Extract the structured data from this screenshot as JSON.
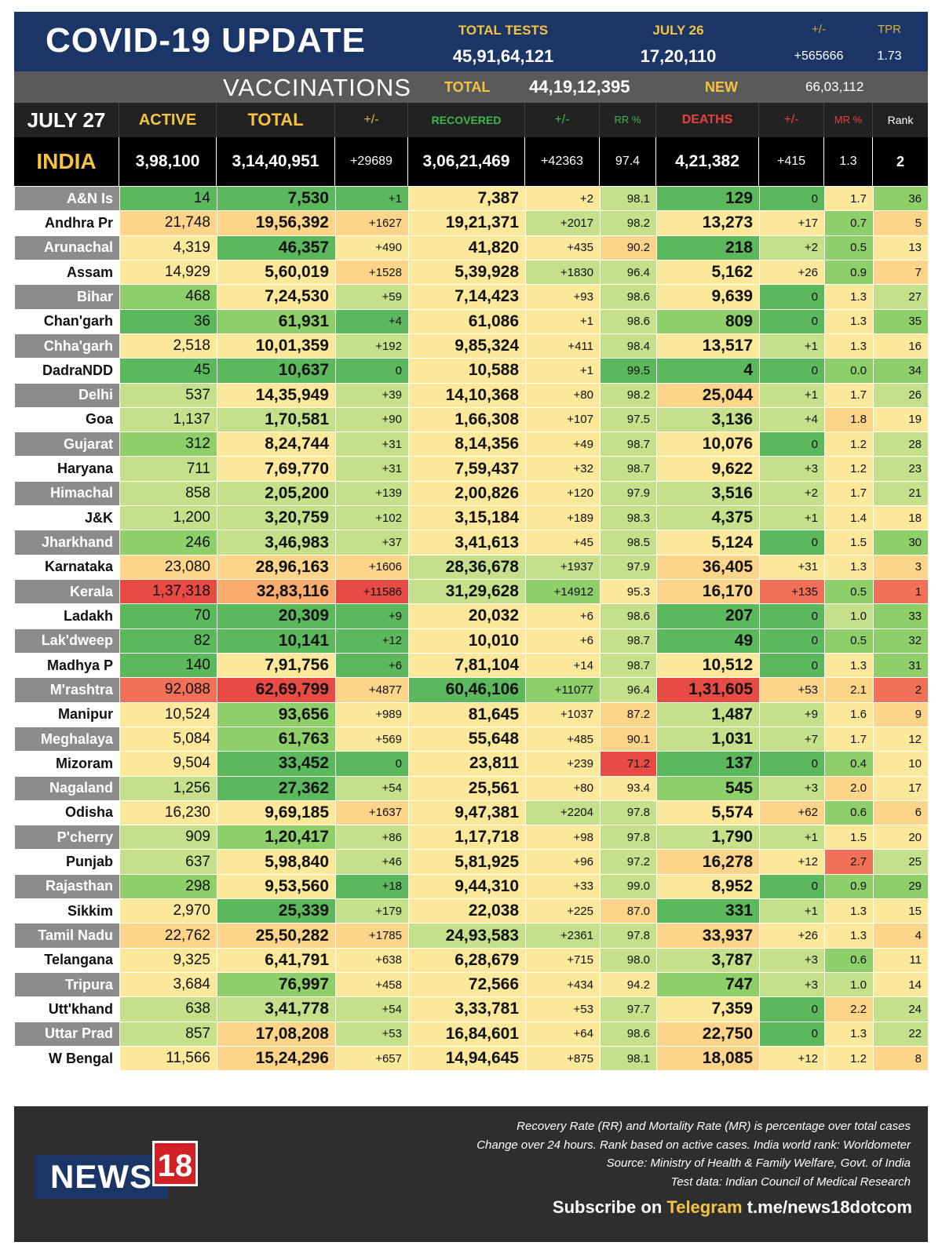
{
  "header": {
    "title": "COVID-19 UPDATE",
    "total_tests_label": "TOTAL TESTS",
    "total_tests_value": "45,91,64,121",
    "date_label": "JULY 26",
    "date_value": "17,20,110",
    "change_label": "+/-",
    "change_value": "+565666",
    "tpr_label": "TPR",
    "tpr_value": "1.73"
  },
  "vaccinations": {
    "title": "VACCINATIONS",
    "total_label": "TOTAL",
    "total_value": "44,19,12,395",
    "new_label": "NEW",
    "new_value": "66,03,112"
  },
  "columns": {
    "date": "JULY 27",
    "active": "ACTIVE",
    "total": "TOTAL",
    "total_change": "+/-",
    "recovered": "RECOVERED",
    "recovered_change": "+/-",
    "rr": "RR %",
    "deaths": "DEATHS",
    "deaths_change": "+/-",
    "mr": "MR %",
    "rank": "Rank"
  },
  "india": {
    "name": "INDIA",
    "active": "3,98,100",
    "total": "3,14,40,951",
    "total_change": "+29689",
    "recovered": "3,06,21,469",
    "recovered_change": "+42363",
    "rr": "97.4",
    "deaths": "4,21,382",
    "deaths_change": "+415",
    "mr": "1.3",
    "rank": "2"
  },
  "states": [
    [
      "A&N Is",
      "14",
      "7,530",
      "+1",
      "7,387",
      "+2",
      "98.1",
      "129",
      "0",
      "1.7",
      "36"
    ],
    [
      "Andhra Pr",
      "21,748",
      "19,56,392",
      "+1627",
      "19,21,371",
      "+2017",
      "98.2",
      "13,273",
      "+17",
      "0.7",
      "5"
    ],
    [
      "Arunachal",
      "4,319",
      "46,357",
      "+490",
      "41,820",
      "+435",
      "90.2",
      "218",
      "+2",
      "0.5",
      "13"
    ],
    [
      "Assam",
      "14,929",
      "5,60,019",
      "+1528",
      "5,39,928",
      "+1830",
      "96.4",
      "5,162",
      "+26",
      "0.9",
      "7"
    ],
    [
      "Bihar",
      "468",
      "7,24,530",
      "+59",
      "7,14,423",
      "+93",
      "98.6",
      "9,639",
      "0",
      "1.3",
      "27"
    ],
    [
      "Chan'garh",
      "36",
      "61,931",
      "+4",
      "61,086",
      "+1",
      "98.6",
      "809",
      "0",
      "1.3",
      "35"
    ],
    [
      "Chha'garh",
      "2,518",
      "10,01,359",
      "+192",
      "9,85,324",
      "+411",
      "98.4",
      "13,517",
      "+1",
      "1.3",
      "16"
    ],
    [
      "DadraNDD",
      "45",
      "10,637",
      "0",
      "10,588",
      "+1",
      "99.5",
      "4",
      "0",
      "0.0",
      "34"
    ],
    [
      "Delhi",
      "537",
      "14,35,949",
      "+39",
      "14,10,368",
      "+80",
      "98.2",
      "25,044",
      "+1",
      "1.7",
      "26"
    ],
    [
      "Goa",
      "1,137",
      "1,70,581",
      "+90",
      "1,66,308",
      "+107",
      "97.5",
      "3,136",
      "+4",
      "1.8",
      "19"
    ],
    [
      "Gujarat",
      "312",
      "8,24,744",
      "+31",
      "8,14,356",
      "+49",
      "98.7",
      "10,076",
      "0",
      "1.2",
      "28"
    ],
    [
      "Haryana",
      "711",
      "7,69,770",
      "+31",
      "7,59,437",
      "+32",
      "98.7",
      "9,622",
      "+3",
      "1.2",
      "23"
    ],
    [
      "Himachal",
      "858",
      "2,05,200",
      "+139",
      "2,00,826",
      "+120",
      "97.9",
      "3,516",
      "+2",
      "1.7",
      "21"
    ],
    [
      "J&K",
      "1,200",
      "3,20,759",
      "+102",
      "3,15,184",
      "+189",
      "98.3",
      "4,375",
      "+1",
      "1.4",
      "18"
    ],
    [
      "Jharkhand",
      "246",
      "3,46,983",
      "+37",
      "3,41,613",
      "+45",
      "98.5",
      "5,124",
      "0",
      "1.5",
      "30"
    ],
    [
      "Karnataka",
      "23,080",
      "28,96,163",
      "+1606",
      "28,36,678",
      "+1937",
      "97.9",
      "36,405",
      "+31",
      "1.3",
      "3"
    ],
    [
      "Kerala",
      "1,37,318",
      "32,83,116",
      "+11586",
      "31,29,628",
      "+14912",
      "95.3",
      "16,170",
      "+135",
      "0.5",
      "1"
    ],
    [
      "Ladakh",
      "70",
      "20,309",
      "+9",
      "20,032",
      "+6",
      "98.6",
      "207",
      "0",
      "1.0",
      "33"
    ],
    [
      "Lak'dweep",
      "82",
      "10,141",
      "+12",
      "10,010",
      "+6",
      "98.7",
      "49",
      "0",
      "0.5",
      "32"
    ],
    [
      "Madhya P",
      "140",
      "7,91,756",
      "+6",
      "7,81,104",
      "+14",
      "98.7",
      "10,512",
      "0",
      "1.3",
      "31"
    ],
    [
      "M'rashtra",
      "92,088",
      "62,69,799",
      "+4877",
      "60,46,106",
      "+11077",
      "96.4",
      "1,31,605",
      "+53",
      "2.1",
      "2"
    ],
    [
      "Manipur",
      "10,524",
      "93,656",
      "+989",
      "81,645",
      "+1037",
      "87.2",
      "1,487",
      "+9",
      "1.6",
      "9"
    ],
    [
      "Meghalaya",
      "5,084",
      "61,763",
      "+569",
      "55,648",
      "+485",
      "90.1",
      "1,031",
      "+7",
      "1.7",
      "12"
    ],
    [
      "Mizoram",
      "9,504",
      "33,452",
      "0",
      "23,811",
      "+239",
      "71.2",
      "137",
      "0",
      "0.4",
      "10"
    ],
    [
      "Nagaland",
      "1,256",
      "27,362",
      "+54",
      "25,561",
      "+80",
      "93.4",
      "545",
      "+3",
      "2.0",
      "17"
    ],
    [
      "Odisha",
      "16,230",
      "9,69,185",
      "+1637",
      "9,47,381",
      "+2204",
      "97.8",
      "5,574",
      "+62",
      "0.6",
      "6"
    ],
    [
      "P'cherry",
      "909",
      "1,20,417",
      "+86",
      "1,17,718",
      "+98",
      "97.8",
      "1,790",
      "+1",
      "1.5",
      "20"
    ],
    [
      "Punjab",
      "637",
      "5,98,840",
      "+46",
      "5,81,925",
      "+96",
      "97.2",
      "16,278",
      "+12",
      "2.7",
      "25"
    ],
    [
      "Rajasthan",
      "298",
      "9,53,560",
      "+18",
      "9,44,310",
      "+33",
      "99.0",
      "8,952",
      "0",
      "0.9",
      "29"
    ],
    [
      "Sikkim",
      "2,970",
      "25,339",
      "+179",
      "22,038",
      "+225",
      "87.0",
      "331",
      "+1",
      "1.3",
      "15"
    ],
    [
      "Tamil Nadu",
      "22,762",
      "25,50,282",
      "+1785",
      "24,93,583",
      "+2361",
      "97.8",
      "33,937",
      "+26",
      "1.3",
      "4"
    ],
    [
      "Telangana",
      "9,325",
      "6,41,791",
      "+638",
      "6,28,679",
      "+715",
      "98.0",
      "3,787",
      "+3",
      "0.6",
      "11"
    ],
    [
      "Tripura",
      "3,684",
      "76,997",
      "+458",
      "72,566",
      "+434",
      "94.2",
      "747",
      "+3",
      "1.0",
      "14"
    ],
    [
      "Utt'khand",
      "638",
      "3,41,778",
      "+54",
      "3,33,781",
      "+53",
      "97.7",
      "7,359",
      "0",
      "2.2",
      "24"
    ],
    [
      "Uttar Prad",
      "857",
      "17,08,208",
      "+53",
      "16,84,601",
      "+64",
      "98.6",
      "22,750",
      "0",
      "1.3",
      "22"
    ],
    [
      "W Bengal",
      "11,566",
      "15,24,296",
      "+657",
      "14,94,645",
      "+875",
      "98.1",
      "18,085",
      "+12",
      "1.2",
      "8"
    ]
  ],
  "colors": {
    "dark_green": "#5cb85c",
    "green": "#8fcf6a",
    "light_green": "#c5e08a",
    "yellow": "#fbe89a",
    "light_orange": "#fcd48a",
    "orange": "#f9ac6e",
    "red": "#f07058",
    "deep_red": "#e84a44"
  },
  "footer": {
    "note1": "Recovery Rate (RR) and Mortality Rate (MR) is percentage over total cases",
    "note2": "Change over 24 hours. Rank based on active cases. India world rank: Worldometer",
    "note3": "Source: Ministry of Health & Family Welfare, Govt. of India",
    "note4": "Test data: Indian Council of Medical Research",
    "subscribe_prefix": "Subscribe on",
    "subscribe_platform": "Telegram",
    "subscribe_link": "t.me/news18dotcom",
    "logo_text": "NEWS",
    "logo_number": "18"
  }
}
